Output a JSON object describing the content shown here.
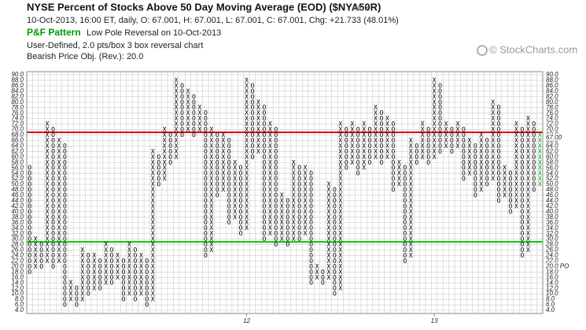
{
  "chart_data": {
    "type": "pointfigure",
    "title": "NYSE Percent of Stocks Above 50 Day Moving Average (EOD) ($NYA50R)",
    "exchange": "INDX",
    "quote_line": "10-Oct-2013, 16:00 ET, daily, O: 67.001, H: 67.001, L: 67.001, C: 67.001, Chg: +21.733 (48.01%)",
    "pattern_label": "P&F Pattern",
    "pattern_text": "Low Pole Reversal on 10-Oct-2013",
    "settings_line": "User-Defined, 2.0 pts/box 3 box reversal chart",
    "objective_line": "Bearish Price Obj. (Rev.): 20.0",
    "watermark": "© StockCharts.com",
    "box_size": 2,
    "ylim": [
      4,
      90
    ],
    "yticks": [
      {
        "value": 90,
        "label": "90.0"
      },
      {
        "value": 88,
        "label": "88.0"
      },
      {
        "value": 86,
        "label": "86.0"
      },
      {
        "value": 84,
        "label": "84.0"
      },
      {
        "value": 82,
        "label": "82.0"
      },
      {
        "value": 80,
        "label": "80.0"
      },
      {
        "value": 78,
        "label": "78.0"
      },
      {
        "value": 76,
        "label": "76.0"
      },
      {
        "value": 74,
        "label": "74.0"
      },
      {
        "value": 72,
        "label": "72.0"
      },
      {
        "value": 70,
        "label": "70.0"
      },
      {
        "value": 68,
        "label": "68.0"
      },
      {
        "value": 66,
        "label": "66.0"
      },
      {
        "value": 64,
        "label": "64.0"
      },
      {
        "value": 62,
        "label": "62.0"
      },
      {
        "value": 60,
        "label": "60.0"
      },
      {
        "value": 58,
        "label": "58.0"
      },
      {
        "value": 56,
        "label": "56.0"
      },
      {
        "value": 54,
        "label": "54.0"
      },
      {
        "value": 52,
        "label": "52.0"
      },
      {
        "value": 50,
        "label": "50.0"
      },
      {
        "value": 48,
        "label": "48.0"
      },
      {
        "value": 46,
        "label": "46.0"
      },
      {
        "value": 44,
        "label": "44.0"
      },
      {
        "value": 42,
        "label": "42.0"
      },
      {
        "value": 40,
        "label": "40.0"
      },
      {
        "value": 38,
        "label": "38.0"
      },
      {
        "value": 36,
        "label": "36.0"
      },
      {
        "value": 34,
        "label": "34.0"
      },
      {
        "value": 32,
        "label": "32.0"
      },
      {
        "value": 30,
        "label": "30.0"
      },
      {
        "value": 28,
        "label": "28.0"
      },
      {
        "value": 26,
        "label": "26.0"
      },
      {
        "value": 24,
        "label": "24.0"
      },
      {
        "value": 22,
        "label": "22.0"
      },
      {
        "value": 20,
        "label": "20.0"
      },
      {
        "value": 18,
        "label": "18.0"
      },
      {
        "value": 16,
        "label": "16.0"
      },
      {
        "value": 14,
        "label": "14.0"
      },
      {
        "value": 12,
        "label": "12.0"
      },
      {
        "value": 10,
        "label": "10.0"
      },
      {
        "value": 8,
        "label": "8.0"
      },
      {
        "value": 6,
        "label": "6.0"
      },
      {
        "value": 4,
        "label": "4.0"
      }
    ],
    "lines": [
      {
        "value": 69,
        "color": "#dd0000"
      },
      {
        "value": 29,
        "color": "#00cc00"
      }
    ],
    "right_markers": [
      {
        "value": 67,
        "label": "67.00"
      },
      {
        "value": 20,
        "label": "20.0 PO"
      }
    ],
    "marker_color": "#cc0000",
    "x_labels": [
      {
        "column": 37,
        "label": "12"
      },
      {
        "column": 69,
        "label": "13"
      }
    ],
    "symbol_color": "#000000",
    "last_column_color": "#009900",
    "columns": [
      {
        "type": "O",
        "low": 18,
        "high": 56
      },
      {
        "type": "X",
        "low": 20,
        "high": 30
      },
      {
        "type": "O",
        "low": 20,
        "high": 28
      },
      {
        "type": "X",
        "low": 22,
        "high": 72
      },
      {
        "type": "O",
        "low": 20,
        "high": 70
      },
      {
        "type": "X",
        "low": 22,
        "high": 66
      },
      {
        "type": "O",
        "low": 6,
        "high": 64
      },
      {
        "type": "X",
        "low": 8,
        "high": 14
      },
      {
        "type": "O",
        "low": 6,
        "high": 12
      },
      {
        "type": "X",
        "low": 8,
        "high": 26
      },
      {
        "type": "O",
        "low": 10,
        "high": 24
      },
      {
        "type": "X",
        "low": 12,
        "high": 24
      },
      {
        "type": "O",
        "low": 12,
        "high": 22
      },
      {
        "type": "X",
        "low": 14,
        "high": 28
      },
      {
        "type": "O",
        "low": 14,
        "high": 26
      },
      {
        "type": "X",
        "low": 16,
        "high": 24
      },
      {
        "type": "O",
        "low": 8,
        "high": 22
      },
      {
        "type": "X",
        "low": 10,
        "high": 28
      },
      {
        "type": "O",
        "low": 8,
        "high": 26
      },
      {
        "type": "X",
        "low": 10,
        "high": 24
      },
      {
        "type": "O",
        "low": 6,
        "high": 22
      },
      {
        "type": "X",
        "low": 8,
        "high": 62
      },
      {
        "type": "O",
        "low": 50,
        "high": 60
      },
      {
        "type": "X",
        "low": 52,
        "high": 70
      },
      {
        "type": "O",
        "low": 58,
        "high": 68
      },
      {
        "type": "X",
        "low": 60,
        "high": 88
      },
      {
        "type": "O",
        "low": 68,
        "high": 86
      },
      {
        "type": "X",
        "low": 70,
        "high": 84
      },
      {
        "type": "O",
        "low": 68,
        "high": 82
      },
      {
        "type": "X",
        "low": 70,
        "high": 78
      },
      {
        "type": "O",
        "low": 24,
        "high": 76
      },
      {
        "type": "X",
        "low": 26,
        "high": 70
      },
      {
        "type": "O",
        "low": 46,
        "high": 68
      },
      {
        "type": "X",
        "low": 48,
        "high": 68
      },
      {
        "type": "O",
        "low": 36,
        "high": 66
      },
      {
        "type": "X",
        "low": 38,
        "high": 58
      },
      {
        "type": "O",
        "low": 32,
        "high": 56
      },
      {
        "type": "X",
        "low": 34,
        "high": 88
      },
      {
        "type": "O",
        "low": 60,
        "high": 86
      },
      {
        "type": "X",
        "low": 62,
        "high": 80
      },
      {
        "type": "O",
        "low": 30,
        "high": 78
      },
      {
        "type": "X",
        "low": 32,
        "high": 72
      },
      {
        "type": "O",
        "low": 28,
        "high": 70
      },
      {
        "type": "X",
        "low": 30,
        "high": 46
      },
      {
        "type": "O",
        "low": 28,
        "high": 44
      },
      {
        "type": "X",
        "low": 30,
        "high": 58
      },
      {
        "type": "O",
        "low": 30,
        "high": 56
      },
      {
        "type": "X",
        "low": 32,
        "high": 56
      },
      {
        "type": "O",
        "low": 14,
        "high": 54
      },
      {
        "type": "X",
        "low": 16,
        "high": 20
      },
      {
        "type": "O",
        "low": 14,
        "high": 18
      },
      {
        "type": "X",
        "low": 16,
        "high": 50
      },
      {
        "type": "O",
        "low": 10,
        "high": 48
      },
      {
        "type": "X",
        "low": 12,
        "high": 72
      },
      {
        "type": "O",
        "low": 56,
        "high": 70
      },
      {
        "type": "X",
        "low": 58,
        "high": 72
      },
      {
        "type": "O",
        "low": 54,
        "high": 70
      },
      {
        "type": "X",
        "low": 56,
        "high": 72
      },
      {
        "type": "O",
        "low": 58,
        "high": 70
      },
      {
        "type": "X",
        "low": 60,
        "high": 78
      },
      {
        "type": "O",
        "low": 58,
        "high": 76
      },
      {
        "type": "X",
        "low": 60,
        "high": 74
      },
      {
        "type": "O",
        "low": 48,
        "high": 72
      },
      {
        "type": "X",
        "low": 50,
        "high": 58
      },
      {
        "type": "O",
        "low": 22,
        "high": 56
      },
      {
        "type": "X",
        "low": 24,
        "high": 66
      },
      {
        "type": "O",
        "low": 58,
        "high": 64
      },
      {
        "type": "X",
        "low": 60,
        "high": 72
      },
      {
        "type": "O",
        "low": 58,
        "high": 70
      },
      {
        "type": "X",
        "low": 60,
        "high": 88
      },
      {
        "type": "O",
        "low": 62,
        "high": 86
      },
      {
        "type": "X",
        "low": 64,
        "high": 72
      },
      {
        "type": "O",
        "low": 62,
        "high": 70
      },
      {
        "type": "X",
        "low": 64,
        "high": 72
      },
      {
        "type": "O",
        "low": 52,
        "high": 70
      },
      {
        "type": "X",
        "low": 54,
        "high": 66
      },
      {
        "type": "O",
        "low": 46,
        "high": 64
      },
      {
        "type": "X",
        "low": 48,
        "high": 68
      },
      {
        "type": "O",
        "low": 50,
        "high": 66
      },
      {
        "type": "X",
        "low": 52,
        "high": 80
      },
      {
        "type": "O",
        "low": 44,
        "high": 78
      },
      {
        "type": "X",
        "low": 46,
        "high": 56
      },
      {
        "type": "O",
        "low": 40,
        "high": 54
      },
      {
        "type": "X",
        "low": 42,
        "high": 72
      },
      {
        "type": "O",
        "low": 24,
        "high": 70
      },
      {
        "type": "X",
        "low": 26,
        "high": 74
      },
      {
        "type": "O",
        "low": 48,
        "high": 72
      },
      {
        "type": "X",
        "low": 50,
        "high": 68
      }
    ]
  }
}
